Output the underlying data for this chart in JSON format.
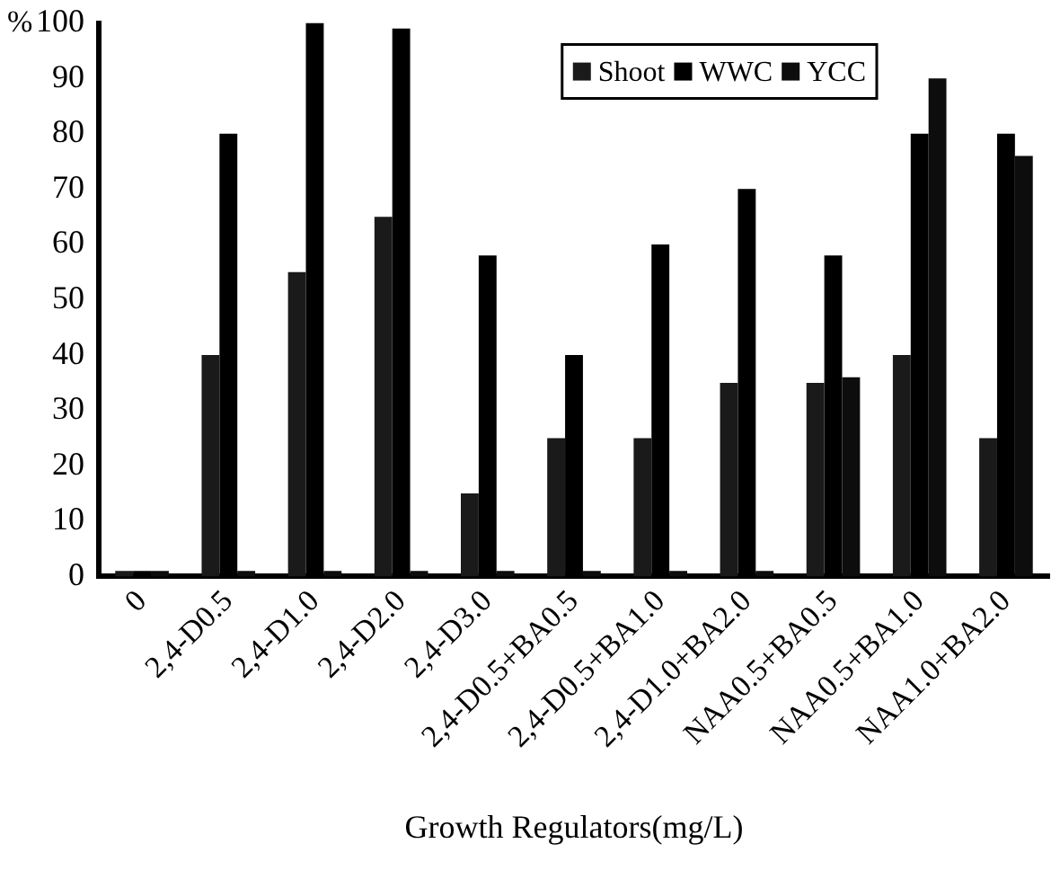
{
  "chart_data": {
    "type": "bar",
    "xlabel": "Growth Regulators(mg/L)",
    "ylabel": "%",
    "categories": [
      "0",
      "2,4-D0.5",
      "2,4-D1.0",
      "2,4-D2.0",
      "2,4-D3.0",
      "2,4-D0.5+BA0.5",
      "2,4-D0.5+BA1.0",
      "2,4-D1.0+BA2.0",
      "NAA0.5+BA0.5",
      "NAA0.5+BA1.0",
      "NAA1.0+BA2.0"
    ],
    "series": [
      {
        "name": "Shoot",
        "color": "#1a1a1a",
        "values": [
          1,
          40,
          55,
          65,
          15,
          25,
          25,
          35,
          35,
          40,
          25
        ]
      },
      {
        "name": "WWC",
        "color": "#000000",
        "values": [
          1,
          80,
          100,
          99,
          58,
          40,
          60,
          70,
          58,
          80,
          80
        ]
      },
      {
        "name": "YCC",
        "color": "#0d0d0d",
        "values": [
          1,
          1,
          1,
          1,
          1,
          1,
          1,
          1,
          36,
          90,
          76
        ]
      }
    ],
    "ylim": [
      0,
      100
    ],
    "yticks": [
      0,
      10,
      20,
      30,
      40,
      50,
      60,
      70,
      80,
      90,
      100
    ],
    "grid": false,
    "legend": "top right"
  }
}
